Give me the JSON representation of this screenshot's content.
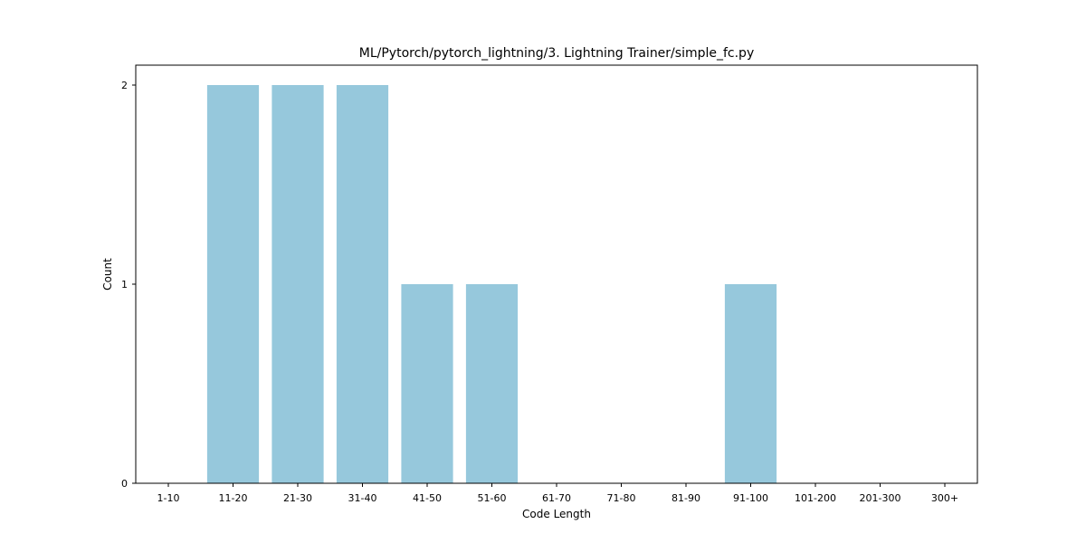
{
  "chart_data": {
    "type": "bar",
    "title": "ML/Pytorch/pytorch_lightning/3. Lightning Trainer/simple_fc.py",
    "xlabel": "Code Length",
    "ylabel": "Count",
    "categories": [
      "1-10",
      "11-20",
      "21-30",
      "31-40",
      "41-50",
      "51-60",
      "61-70",
      "71-80",
      "81-90",
      "91-100",
      "101-200",
      "201-300",
      "300+"
    ],
    "values": [
      0,
      2,
      2,
      2,
      1,
      1,
      0,
      0,
      0,
      1,
      0,
      0,
      0
    ],
    "ylim": [
      0,
      2.1
    ],
    "yticks": [
      0,
      1,
      2
    ],
    "bar_color": "#96c8dc",
    "grid": false,
    "legend": "none"
  }
}
